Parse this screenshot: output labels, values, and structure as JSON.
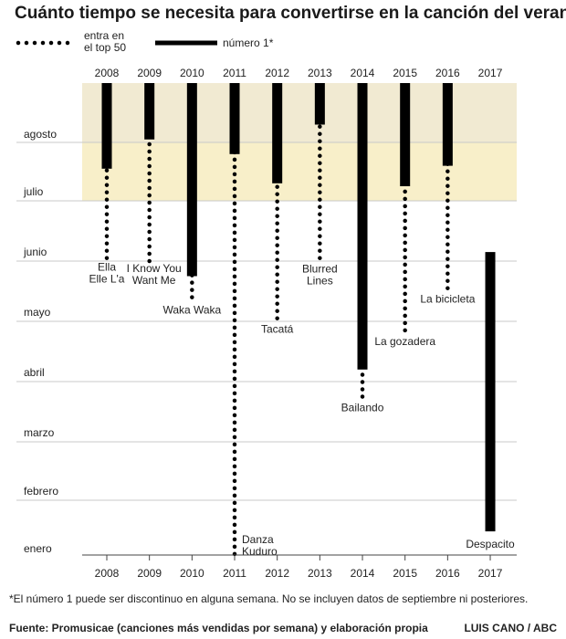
{
  "chart_data": {
    "type": "timeline-range",
    "title": "Cuánto tiempo se necesita para convertirse en la canción del verano",
    "legend": {
      "dotted_label_line1": "entra en",
      "dotted_label_line2": "el top 50",
      "solid_label": "número 1*"
    },
    "years": [
      "2008",
      "2009",
      "2010",
      "2011",
      "2012",
      "2013",
      "2014",
      "2015",
      "2016",
      "2017"
    ],
    "months": [
      "enero",
      "febrero",
      "marzo",
      "abril",
      "mayo",
      "junio",
      "julio",
      "agosto"
    ],
    "y_axis": {
      "start_month": "enero",
      "end_month": "agosto",
      "direction": "enero-bottom"
    },
    "bands": [
      {
        "name": "july",
        "from_month_index": 6,
        "to_month_index": 7,
        "color": "#f8efc9"
      },
      {
        "name": "august",
        "from_month_index": 7,
        "to_month_index": 8,
        "color": "#f1ead2"
      }
    ],
    "songs": [
      {
        "year": "2008",
        "lines": [
          "Ella",
          "Elle L'a"
        ],
        "entry": 5.05,
        "number1_start": 6.55,
        "number1_end": 8.0
      },
      {
        "year": "2009",
        "lines": [
          "I Know You",
          "Want Me"
        ],
        "entry": 5.0,
        "number1_start": 7.05,
        "number1_end": 8.0
      },
      {
        "year": "2010",
        "lines": [
          "Waka Waka"
        ],
        "entry": 4.4,
        "number1_start": 4.75,
        "number1_end": 8.0
      },
      {
        "year": "2011",
        "lines": [
          "Danza",
          "Kuduro"
        ],
        "entry": 0.05,
        "number1_start": 6.8,
        "number1_end": 8.0
      },
      {
        "year": "2012",
        "lines": [
          "Tacatá"
        ],
        "entry": 4.05,
        "number1_start": 6.3,
        "number1_end": 8.0
      },
      {
        "year": "2013",
        "lines": [
          "Blurred",
          "Lines"
        ],
        "entry": 5.05,
        "number1_start": 7.3,
        "number1_end": 8.0
      },
      {
        "year": "2014",
        "lines": [
          "Bailando"
        ],
        "entry": 2.75,
        "number1_start": 3.2,
        "number1_end": 8.0
      },
      {
        "year": "2015",
        "lines": [
          "La gozadera"
        ],
        "entry": 3.85,
        "number1_start": 6.25,
        "number1_end": 8.0
      },
      {
        "year": "2016",
        "lines": [
          "La bicicleta"
        ],
        "entry": 4.55,
        "number1_start": 6.6,
        "number1_end": 8.0
      },
      {
        "year": "2017",
        "lines": [
          "Despacito"
        ],
        "entry": null,
        "number1_start": 0.45,
        "number1_end": 5.15
      }
    ],
    "footnote": "*El número 1 puede ser discontinuo en alguna semana. No se incluyen datos de septiembre ni posteriores.",
    "source": "Fuente: Promusicae (canciones más vendidas por semana) y elaboración propia",
    "credit": "LUIS CANO / ABC"
  }
}
